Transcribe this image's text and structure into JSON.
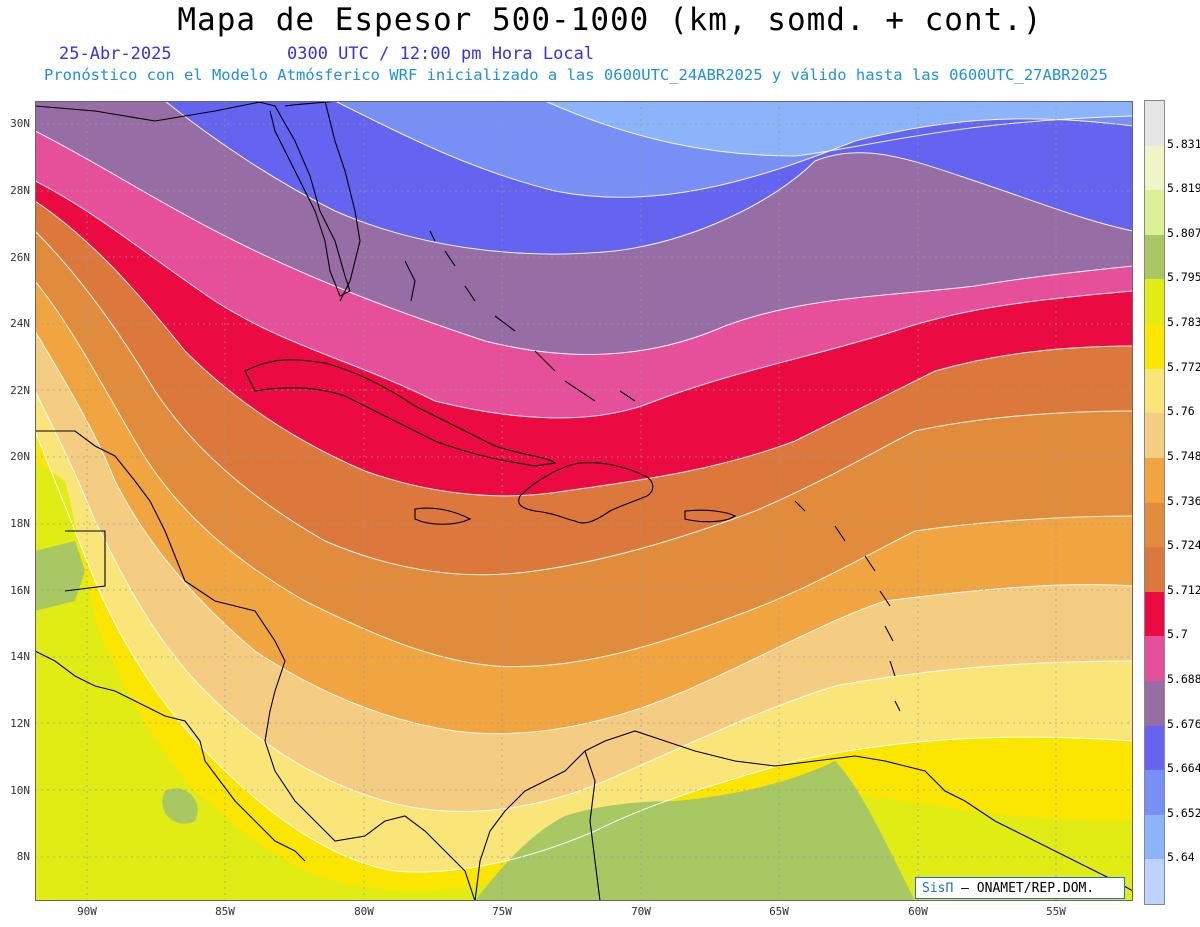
{
  "header": {
    "title": "Mapa de Espesor 500-1000 (km, somd. + cont.)",
    "date": "25-Abr-2025",
    "time": "0300 UTC / 12:00 pm Hora Local",
    "init": "Pronóstico con el Modelo Atmósferico WRF inicializado a las 0600UTC_24ABR2025 y válido hasta las  0600UTC_27ABR2025"
  },
  "axes": {
    "lat_labels": [
      "30N",
      "28N",
      "26N",
      "24N",
      "22N",
      "20N",
      "18N",
      "16N",
      "14N",
      "12N",
      "10N",
      "8N"
    ],
    "lon_labels": [
      "90W",
      "85W",
      "80W",
      "75W",
      "70W",
      "65W",
      "60W",
      "55W"
    ]
  },
  "legend": {
    "levels": [
      "5.831",
      "5.819",
      "5.807",
      "5.795",
      "5.783",
      "5.772",
      "5.76",
      "5.748",
      "5.736",
      "5.724",
      "5.712",
      "5.7",
      "5.688",
      "5.676",
      "5.664",
      "5.652",
      "5.64"
    ],
    "colors": [
      "#e6e6e6",
      "#f0f5c8",
      "#dcf096",
      "#a8c864",
      "#e1eb14",
      "#fae600",
      "#fae678",
      "#f5cd82",
      "#f0a541",
      "#e18c3c",
      "#dc783c",
      "#eb0a41",
      "#e6509b",
      "#966ea5",
      "#6464f0",
      "#7890f5",
      "#8cb4fa",
      "#bed2ff"
    ]
  },
  "credit": {
    "sis": "SisΠ",
    "text": "– ONAMET/REP.DOM."
  }
}
